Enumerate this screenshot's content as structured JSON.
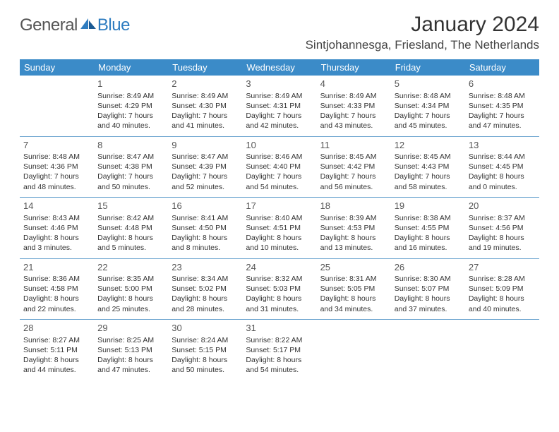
{
  "brand": {
    "text1": "General",
    "text2": "Blue"
  },
  "title": "January 2024",
  "location": "Sintjohannesga, Friesland, The Netherlands",
  "header_bg": "#3b8bc8",
  "sep_color": "#6aa3cf",
  "day_names": [
    "Sunday",
    "Monday",
    "Tuesday",
    "Wednesday",
    "Thursday",
    "Friday",
    "Saturday"
  ],
  "weeks": [
    [
      null,
      {
        "n": "1",
        "sr": "8:49 AM",
        "ss": "4:29 PM",
        "dl": "7 hours",
        "dm": "and 40 minutes."
      },
      {
        "n": "2",
        "sr": "8:49 AM",
        "ss": "4:30 PM",
        "dl": "7 hours",
        "dm": "and 41 minutes."
      },
      {
        "n": "3",
        "sr": "8:49 AM",
        "ss": "4:31 PM",
        "dl": "7 hours",
        "dm": "and 42 minutes."
      },
      {
        "n": "4",
        "sr": "8:49 AM",
        "ss": "4:33 PM",
        "dl": "7 hours",
        "dm": "and 43 minutes."
      },
      {
        "n": "5",
        "sr": "8:48 AM",
        "ss": "4:34 PM",
        "dl": "7 hours",
        "dm": "and 45 minutes."
      },
      {
        "n": "6",
        "sr": "8:48 AM",
        "ss": "4:35 PM",
        "dl": "7 hours",
        "dm": "and 47 minutes."
      }
    ],
    [
      {
        "n": "7",
        "sr": "8:48 AM",
        "ss": "4:36 PM",
        "dl": "7 hours",
        "dm": "and 48 minutes."
      },
      {
        "n": "8",
        "sr": "8:47 AM",
        "ss": "4:38 PM",
        "dl": "7 hours",
        "dm": "and 50 minutes."
      },
      {
        "n": "9",
        "sr": "8:47 AM",
        "ss": "4:39 PM",
        "dl": "7 hours",
        "dm": "and 52 minutes."
      },
      {
        "n": "10",
        "sr": "8:46 AM",
        "ss": "4:40 PM",
        "dl": "7 hours",
        "dm": "and 54 minutes."
      },
      {
        "n": "11",
        "sr": "8:45 AM",
        "ss": "4:42 PM",
        "dl": "7 hours",
        "dm": "and 56 minutes."
      },
      {
        "n": "12",
        "sr": "8:45 AM",
        "ss": "4:43 PM",
        "dl": "7 hours",
        "dm": "and 58 minutes."
      },
      {
        "n": "13",
        "sr": "8:44 AM",
        "ss": "4:45 PM",
        "dl": "8 hours",
        "dm": "and 0 minutes."
      }
    ],
    [
      {
        "n": "14",
        "sr": "8:43 AM",
        "ss": "4:46 PM",
        "dl": "8 hours",
        "dm": "and 3 minutes."
      },
      {
        "n": "15",
        "sr": "8:42 AM",
        "ss": "4:48 PM",
        "dl": "8 hours",
        "dm": "and 5 minutes."
      },
      {
        "n": "16",
        "sr": "8:41 AM",
        "ss": "4:50 PM",
        "dl": "8 hours",
        "dm": "and 8 minutes."
      },
      {
        "n": "17",
        "sr": "8:40 AM",
        "ss": "4:51 PM",
        "dl": "8 hours",
        "dm": "and 10 minutes."
      },
      {
        "n": "18",
        "sr": "8:39 AM",
        "ss": "4:53 PM",
        "dl": "8 hours",
        "dm": "and 13 minutes."
      },
      {
        "n": "19",
        "sr": "8:38 AM",
        "ss": "4:55 PM",
        "dl": "8 hours",
        "dm": "and 16 minutes."
      },
      {
        "n": "20",
        "sr": "8:37 AM",
        "ss": "4:56 PM",
        "dl": "8 hours",
        "dm": "and 19 minutes."
      }
    ],
    [
      {
        "n": "21",
        "sr": "8:36 AM",
        "ss": "4:58 PM",
        "dl": "8 hours",
        "dm": "and 22 minutes."
      },
      {
        "n": "22",
        "sr": "8:35 AM",
        "ss": "5:00 PM",
        "dl": "8 hours",
        "dm": "and 25 minutes."
      },
      {
        "n": "23",
        "sr": "8:34 AM",
        "ss": "5:02 PM",
        "dl": "8 hours",
        "dm": "and 28 minutes."
      },
      {
        "n": "24",
        "sr": "8:32 AM",
        "ss": "5:03 PM",
        "dl": "8 hours",
        "dm": "and 31 minutes."
      },
      {
        "n": "25",
        "sr": "8:31 AM",
        "ss": "5:05 PM",
        "dl": "8 hours",
        "dm": "and 34 minutes."
      },
      {
        "n": "26",
        "sr": "8:30 AM",
        "ss": "5:07 PM",
        "dl": "8 hours",
        "dm": "and 37 minutes."
      },
      {
        "n": "27",
        "sr": "8:28 AM",
        "ss": "5:09 PM",
        "dl": "8 hours",
        "dm": "and 40 minutes."
      }
    ],
    [
      {
        "n": "28",
        "sr": "8:27 AM",
        "ss": "5:11 PM",
        "dl": "8 hours",
        "dm": "and 44 minutes."
      },
      {
        "n": "29",
        "sr": "8:25 AM",
        "ss": "5:13 PM",
        "dl": "8 hours",
        "dm": "and 47 minutes."
      },
      {
        "n": "30",
        "sr": "8:24 AM",
        "ss": "5:15 PM",
        "dl": "8 hours",
        "dm": "and 50 minutes."
      },
      {
        "n": "31",
        "sr": "8:22 AM",
        "ss": "5:17 PM",
        "dl": "8 hours",
        "dm": "and 54 minutes."
      },
      null,
      null,
      null
    ]
  ],
  "labels": {
    "sunrise": "Sunrise:",
    "sunset": "Sunset:",
    "daylight": "Daylight:"
  }
}
